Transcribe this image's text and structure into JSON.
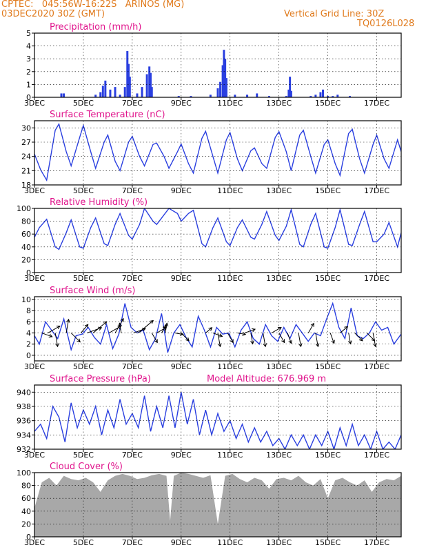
{
  "header": {
    "line1_left": "CPTEC:   045:56W-16:22S   ARINOS (MG)",
    "line2_left": "03DEC2020 30Z (GMT)",
    "line1_right": "Vertical Grid Line: 30Z",
    "line2_right": "TQ0126L028"
  },
  "colors": {
    "header": "#e07a1c",
    "title": "#e0148c",
    "line": "#2a3fe0",
    "bar": "#2a3fe0",
    "cloud": "#a8a8a8",
    "grid": "#000000"
  },
  "x_tick_labels": [
    "3DEC",
    "5DEC",
    "7DEC",
    "9DEC",
    "11DEC",
    "13DEC",
    "15DEC",
    "17DEC"
  ],
  "x_tick_days": [
    0,
    2,
    4,
    6,
    8,
    10,
    12,
    14
  ],
  "x_range_days": [
    0,
    15
  ],
  "chart_data": [
    {
      "id": "precip",
      "type": "bar",
      "title": "Precipitation (mm/h)",
      "xlim": [
        0,
        15
      ],
      "ylim": [
        0,
        5
      ],
      "yticks": [
        0,
        1,
        2,
        3,
        4,
        5
      ],
      "x_unit": "days since 3DEC",
      "points": [
        [
          1.1,
          0.3
        ],
        [
          1.2,
          0.3
        ],
        [
          2.5,
          0.2
        ],
        [
          2.7,
          0.4
        ],
        [
          2.8,
          0.9
        ],
        [
          2.9,
          1.3
        ],
        [
          3.1,
          0.6
        ],
        [
          3.3,
          0.8
        ],
        [
          3.5,
          0.2
        ],
        [
          3.7,
          0.8
        ],
        [
          3.8,
          3.6
        ],
        [
          3.85,
          2.6
        ],
        [
          3.9,
          1.6
        ],
        [
          4.2,
          0.3
        ],
        [
          4.4,
          0.8
        ],
        [
          4.6,
          1.8
        ],
        [
          4.7,
          2.4
        ],
        [
          4.75,
          1.9
        ],
        [
          4.8,
          0.8
        ],
        [
          5.9,
          0.1
        ],
        [
          6.4,
          0.1
        ],
        [
          7.2,
          0.2
        ],
        [
          7.5,
          0.7
        ],
        [
          7.6,
          1.2
        ],
        [
          7.7,
          2.5
        ],
        [
          7.75,
          3.7
        ],
        [
          7.8,
          3.0
        ],
        [
          7.85,
          1.5
        ],
        [
          8.2,
          0.2
        ],
        [
          8.7,
          0.2
        ],
        [
          9.1,
          0.3
        ],
        [
          9.6,
          0.1
        ],
        [
          10.3,
          0.1
        ],
        [
          10.4,
          0.6
        ],
        [
          10.45,
          1.6
        ],
        [
          10.5,
          0.5
        ],
        [
          11.3,
          0.1
        ],
        [
          11.5,
          0.2
        ],
        [
          11.7,
          0.4
        ],
        [
          11.8,
          0.6
        ],
        [
          12.0,
          0.1
        ],
        [
          12.2,
          0.1
        ],
        [
          12.4,
          0.2
        ],
        [
          12.9,
          0.1
        ]
      ]
    },
    {
      "id": "temp",
      "type": "line",
      "title": "Surface Temperature (nC)",
      "xlim": [
        0,
        15
      ],
      "ylim": [
        18,
        31.5
      ],
      "yticks": [
        18,
        21,
        24,
        27,
        30
      ],
      "x": [
        0,
        0.25,
        0.5,
        0.85,
        1.0,
        1.3,
        1.5,
        1.85,
        2.0,
        2.3,
        2.5,
        2.85,
        3.0,
        3.3,
        3.5,
        3.85,
        4.0,
        4.3,
        4.5,
        4.85,
        5.0,
        5.3,
        5.5,
        5.85,
        6.0,
        6.3,
        6.5,
        6.85,
        7.0,
        7.3,
        7.5,
        7.85,
        8.0,
        8.3,
        8.5,
        8.85,
        9.0,
        9.3,
        9.5,
        9.85,
        10.0,
        10.3,
        10.5,
        10.85,
        11.0,
        11.3,
        11.5,
        11.85,
        12.0,
        12.3,
        12.5,
        12.85,
        13.0,
        13.3,
        13.5,
        13.85,
        14.0,
        14.3,
        14.5,
        14.85,
        15.0
      ],
      "series": [
        {
          "values": [
            24.5,
            21.2,
            19.0,
            29.5,
            30.8,
            25.0,
            22.0,
            28.0,
            30.5,
            25.0,
            21.5,
            27.0,
            28.5,
            23.0,
            21.0,
            27.0,
            28.2,
            24.0,
            22.0,
            26.5,
            26.8,
            24.0,
            21.5,
            25.0,
            26.6,
            22.5,
            20.5,
            27.8,
            29.3,
            24.0,
            20.5,
            27.5,
            29.0,
            23.5,
            21.0,
            25.2,
            25.8,
            22.5,
            21.5,
            28.0,
            29.2,
            25.0,
            21.0,
            28.5,
            29.5,
            24.0,
            20.5,
            26.5,
            27.5,
            22.5,
            20.0,
            28.8,
            29.7,
            23.5,
            20.5,
            26.5,
            28.5,
            23.5,
            21.5,
            27.5,
            25.0
          ]
        }
      ]
    },
    {
      "id": "rh",
      "type": "line",
      "title": "Relative Humidity (%)",
      "xlim": [
        0,
        15
      ],
      "ylim": [
        0,
        100
      ],
      "yticks": [
        0,
        20,
        40,
        60,
        80,
        100
      ],
      "x": [
        0,
        0.2,
        0.5,
        0.85,
        1.0,
        1.3,
        1.5,
        1.85,
        2.0,
        2.3,
        2.5,
        2.85,
        3.0,
        3.3,
        3.5,
        3.85,
        4.0,
        4.3,
        4.5,
        4.85,
        5.0,
        5.3,
        5.5,
        5.85,
        6.0,
        6.3,
        6.5,
        6.85,
        7.0,
        7.3,
        7.5,
        7.85,
        8.0,
        8.3,
        8.5,
        8.85,
        9.0,
        9.3,
        9.5,
        9.85,
        10.0,
        10.3,
        10.5,
        10.85,
        11.0,
        11.3,
        11.5,
        11.85,
        12.0,
        12.3,
        12.5,
        12.85,
        13.0,
        13.3,
        13.5,
        13.85,
        14.0,
        14.3,
        14.5,
        14.85,
        15.0
      ],
      "series": [
        {
          "values": [
            55,
            70,
            83,
            40,
            36,
            62,
            82,
            40,
            38,
            70,
            85,
            45,
            42,
            75,
            92,
            58,
            52,
            75,
            100,
            80,
            75,
            90,
            100,
            92,
            80,
            92,
            97,
            45,
            40,
            70,
            85,
            48,
            42,
            70,
            82,
            55,
            52,
            75,
            95,
            58,
            50,
            72,
            98,
            44,
            40,
            75,
            92,
            40,
            38,
            70,
            98,
            44,
            42,
            75,
            95,
            48,
            48,
            60,
            78,
            40,
            62
          ]
        }
      ]
    },
    {
      "id": "wind",
      "type": "line",
      "title": "Surface Wind (m/s)",
      "xlim": [
        0,
        15
      ],
      "ylim": [
        -1,
        10.5
      ],
      "yticks": [
        0,
        2,
        4,
        6,
        8,
        10
      ],
      "x": [
        0,
        0.2,
        0.45,
        0.7,
        0.95,
        1.2,
        1.5,
        1.7,
        1.95,
        2.2,
        2.45,
        2.7,
        2.95,
        3.2,
        3.45,
        3.7,
        3.95,
        4.2,
        4.45,
        4.7,
        4.95,
        5.2,
        5.45,
        5.7,
        5.95,
        6.2,
        6.45,
        6.7,
        6.95,
        7.2,
        7.45,
        7.7,
        7.95,
        8.2,
        8.45,
        8.7,
        8.95,
        9.2,
        9.45,
        9.7,
        9.95,
        10.2,
        10.45,
        10.7,
        10.95,
        11.2,
        11.45,
        11.7,
        11.95,
        12.2,
        12.45,
        12.7,
        12.95,
        13.2,
        13.45,
        13.7,
        13.95,
        14.2,
        14.45,
        14.7,
        15.0
      ],
      "series": [
        {
          "values": [
            3.5,
            2.0,
            6.0,
            4.5,
            3.0,
            6.5,
            1.0,
            3.5,
            3.8,
            5.0,
            3.2,
            2.0,
            5.5,
            1.2,
            3.8,
            9.3,
            5.0,
            4.0,
            4.5,
            1.0,
            3.0,
            7.5,
            0.5,
            4.0,
            5.5,
            3.2,
            1.5,
            7.0,
            4.5,
            1.5,
            5.0,
            3.8,
            4.0,
            1.5,
            4.5,
            6.0,
            3.0,
            2.0,
            5.5,
            3.5,
            2.5,
            5.0,
            3.0,
            5.5,
            4.0,
            2.5,
            4.0,
            3.5,
            6.5,
            9.3,
            5.0,
            3.0,
            8.5,
            3.5,
            3.0,
            4.0,
            6.0,
            4.5,
            5.0,
            2.0,
            3.8
          ]
        }
      ],
      "vectors": [
        [
          0.3,
          -20,
          2.0
        ],
        [
          0.55,
          30,
          2.5
        ],
        [
          0.85,
          -80,
          2.5
        ],
        [
          1.3,
          80,
          2.5
        ],
        [
          1.5,
          -45,
          2.3
        ],
        [
          1.9,
          50,
          2.0
        ],
        [
          2.15,
          20,
          2.8
        ],
        [
          2.4,
          40,
          3.2
        ],
        [
          3.05,
          30,
          2.5
        ],
        [
          3.3,
          60,
          3.0
        ],
        [
          3.55,
          100,
          1.8
        ],
        [
          4.05,
          20,
          2.3
        ],
        [
          4.25,
          40,
          3.5
        ],
        [
          4.8,
          -60,
          2.0
        ],
        [
          5.0,
          30,
          2.0
        ],
        [
          5.2,
          60,
          1.6
        ],
        [
          5.35,
          80,
          1.8
        ],
        [
          5.75,
          -10,
          1.5
        ],
        [
          6.0,
          -45,
          2.0
        ],
        [
          7.0,
          40,
          1.5
        ],
        [
          7.3,
          -20,
          1.8
        ],
        [
          7.5,
          -80,
          2.5
        ],
        [
          7.9,
          -60,
          2.0
        ],
        [
          8.3,
          -10,
          1.5
        ],
        [
          8.6,
          20,
          2.0
        ],
        [
          8.85,
          -80,
          2.0
        ],
        [
          9.35,
          -80,
          2.5
        ],
        [
          9.7,
          30,
          2.0
        ],
        [
          10.0,
          -60,
          2.0
        ],
        [
          10.35,
          -70,
          2.0
        ],
        [
          10.8,
          -80,
          2.5
        ],
        [
          11.2,
          60,
          2.0
        ],
        [
          11.5,
          -80,
          2.5
        ],
        [
          12.1,
          -70,
          2.0
        ],
        [
          12.5,
          40,
          1.8
        ],
        [
          12.85,
          -80,
          2.0
        ],
        [
          13.1,
          -45,
          2.0
        ],
        [
          13.6,
          -45,
          2.0
        ],
        [
          13.85,
          -80,
          2.5
        ]
      ]
    },
    {
      "id": "press",
      "type": "line",
      "title": "Surface Pressure (hPa)",
      "annotation": "Model Altitude: 676.969 m",
      "xlim": [
        0,
        15
      ],
      "ylim": [
        932,
        941
      ],
      "yticks": [
        932,
        934,
        936,
        938,
        940
      ],
      "x": [
        0,
        0.25,
        0.5,
        0.75,
        1.0,
        1.25,
        1.5,
        1.75,
        2.0,
        2.25,
        2.5,
        2.75,
        3.0,
        3.25,
        3.5,
        3.75,
        4.0,
        4.25,
        4.5,
        4.75,
        5.0,
        5.25,
        5.5,
        5.75,
        6.0,
        6.25,
        6.5,
        6.75,
        7.0,
        7.25,
        7.5,
        7.75,
        8.0,
        8.25,
        8.5,
        8.75,
        9.0,
        9.25,
        9.5,
        9.75,
        10.0,
        10.25,
        10.5,
        10.75,
        11.0,
        11.25,
        11.5,
        11.75,
        12.0,
        12.25,
        12.5,
        12.75,
        13.0,
        13.25,
        13.5,
        13.75,
        14.0,
        14.25,
        14.5,
        14.75,
        15.0
      ],
      "series": [
        {
          "values": [
            934.5,
            935.5,
            933.5,
            938.0,
            936.5,
            933.0,
            938.5,
            935.0,
            937.5,
            935.5,
            938.0,
            934.0,
            937.5,
            935.0,
            939.0,
            935.5,
            937.0,
            935.0,
            939.5,
            934.5,
            938.0,
            935.0,
            939.5,
            935.0,
            940.0,
            935.5,
            939.0,
            934.0,
            937.5,
            934.0,
            937.0,
            934.5,
            936.0,
            933.5,
            935.5,
            933.0,
            935.0,
            933.0,
            934.5,
            932.5,
            933.5,
            932.0,
            934.0,
            932.5,
            934.0,
            932.0,
            934.0,
            932.5,
            934.5,
            932.0,
            935.0,
            932.5,
            935.5,
            932.5,
            934.0,
            932.0,
            934.5,
            932.0,
            933.0,
            932.0,
            934.0
          ]
        }
      ]
    },
    {
      "id": "cloud",
      "type": "area",
      "title": "Cloud Cover (%)",
      "xlim": [
        0,
        15
      ],
      "ylim": [
        0,
        100
      ],
      "yticks": [
        0,
        20,
        40,
        60,
        80,
        100
      ],
      "x": [
        0,
        0.3,
        0.6,
        0.9,
        1.2,
        1.5,
        1.8,
        2.1,
        2.4,
        2.7,
        3.0,
        3.3,
        3.6,
        3.9,
        4.2,
        4.5,
        4.8,
        5.1,
        5.4,
        5.55,
        5.7,
        6.0,
        6.3,
        6.6,
        6.9,
        7.2,
        7.5,
        7.8,
        8.1,
        8.4,
        8.7,
        9.0,
        9.3,
        9.6,
        9.9,
        10.2,
        10.5,
        10.8,
        11.1,
        11.4,
        11.7,
        12.0,
        12.3,
        12.6,
        12.9,
        13.2,
        13.5,
        13.8,
        14.1,
        14.4,
        14.7,
        15.0
      ],
      "series": [
        {
          "values": [
            45,
            85,
            92,
            80,
            95,
            90,
            88,
            92,
            85,
            70,
            88,
            95,
            98,
            95,
            90,
            92,
            96,
            98,
            95,
            25,
            95,
            100,
            98,
            95,
            92,
            96,
            20,
            95,
            98,
            90,
            85,
            92,
            88,
            75,
            90,
            92,
            88,
            95,
            85,
            80,
            90,
            60,
            88,
            92,
            85,
            80,
            88,
            70,
            85,
            90,
            88,
            95
          ]
        }
      ]
    }
  ]
}
